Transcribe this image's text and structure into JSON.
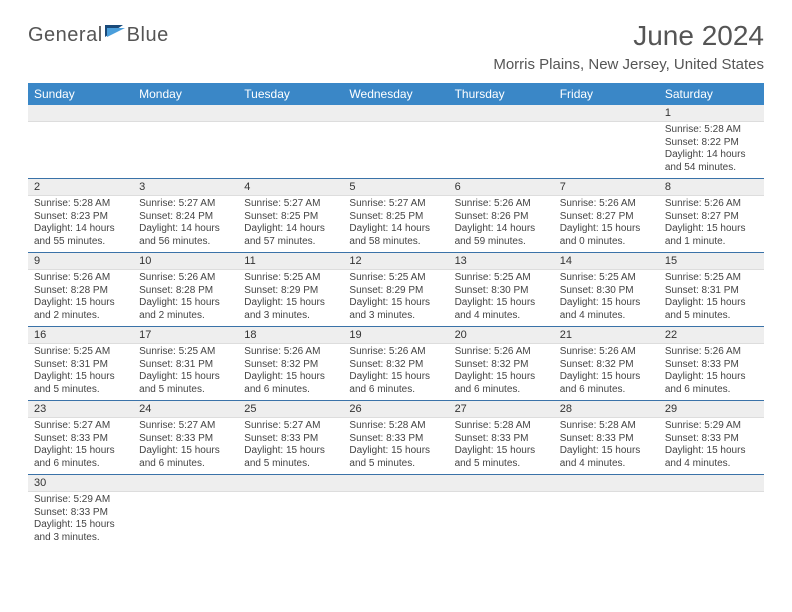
{
  "logo": {
    "text1": "General",
    "text2": "Blue"
  },
  "colors": {
    "accent": "#3a87c7",
    "header_text": "#555555",
    "border": "#3a72a8",
    "daynum_bg": "#eeeeee",
    "flag_dark": "#1a4a7a",
    "flag_light": "#4a9edb"
  },
  "header": {
    "month": "June 2024",
    "location": "Morris Plains, New Jersey, United States"
  },
  "weekdays": [
    "Sunday",
    "Monday",
    "Tuesday",
    "Wednesday",
    "Thursday",
    "Friday",
    "Saturday"
  ],
  "weeks": [
    [
      {
        "blank": true
      },
      {
        "blank": true
      },
      {
        "blank": true
      },
      {
        "blank": true
      },
      {
        "blank": true
      },
      {
        "blank": true
      },
      {
        "day": "1",
        "sunrise": "Sunrise: 5:28 AM",
        "sunset": "Sunset: 8:22 PM",
        "daylight1": "Daylight: 14 hours",
        "daylight2": "and 54 minutes."
      }
    ],
    [
      {
        "day": "2",
        "sunrise": "Sunrise: 5:28 AM",
        "sunset": "Sunset: 8:23 PM",
        "daylight1": "Daylight: 14 hours",
        "daylight2": "and 55 minutes."
      },
      {
        "day": "3",
        "sunrise": "Sunrise: 5:27 AM",
        "sunset": "Sunset: 8:24 PM",
        "daylight1": "Daylight: 14 hours",
        "daylight2": "and 56 minutes."
      },
      {
        "day": "4",
        "sunrise": "Sunrise: 5:27 AM",
        "sunset": "Sunset: 8:25 PM",
        "daylight1": "Daylight: 14 hours",
        "daylight2": "and 57 minutes."
      },
      {
        "day": "5",
        "sunrise": "Sunrise: 5:27 AM",
        "sunset": "Sunset: 8:25 PM",
        "daylight1": "Daylight: 14 hours",
        "daylight2": "and 58 minutes."
      },
      {
        "day": "6",
        "sunrise": "Sunrise: 5:26 AM",
        "sunset": "Sunset: 8:26 PM",
        "daylight1": "Daylight: 14 hours",
        "daylight2": "and 59 minutes."
      },
      {
        "day": "7",
        "sunrise": "Sunrise: 5:26 AM",
        "sunset": "Sunset: 8:27 PM",
        "daylight1": "Daylight: 15 hours",
        "daylight2": "and 0 minutes."
      },
      {
        "day": "8",
        "sunrise": "Sunrise: 5:26 AM",
        "sunset": "Sunset: 8:27 PM",
        "daylight1": "Daylight: 15 hours",
        "daylight2": "and 1 minute."
      }
    ],
    [
      {
        "day": "9",
        "sunrise": "Sunrise: 5:26 AM",
        "sunset": "Sunset: 8:28 PM",
        "daylight1": "Daylight: 15 hours",
        "daylight2": "and 2 minutes."
      },
      {
        "day": "10",
        "sunrise": "Sunrise: 5:26 AM",
        "sunset": "Sunset: 8:28 PM",
        "daylight1": "Daylight: 15 hours",
        "daylight2": "and 2 minutes."
      },
      {
        "day": "11",
        "sunrise": "Sunrise: 5:25 AM",
        "sunset": "Sunset: 8:29 PM",
        "daylight1": "Daylight: 15 hours",
        "daylight2": "and 3 minutes."
      },
      {
        "day": "12",
        "sunrise": "Sunrise: 5:25 AM",
        "sunset": "Sunset: 8:29 PM",
        "daylight1": "Daylight: 15 hours",
        "daylight2": "and 3 minutes."
      },
      {
        "day": "13",
        "sunrise": "Sunrise: 5:25 AM",
        "sunset": "Sunset: 8:30 PM",
        "daylight1": "Daylight: 15 hours",
        "daylight2": "and 4 minutes."
      },
      {
        "day": "14",
        "sunrise": "Sunrise: 5:25 AM",
        "sunset": "Sunset: 8:30 PM",
        "daylight1": "Daylight: 15 hours",
        "daylight2": "and 4 minutes."
      },
      {
        "day": "15",
        "sunrise": "Sunrise: 5:25 AM",
        "sunset": "Sunset: 8:31 PM",
        "daylight1": "Daylight: 15 hours",
        "daylight2": "and 5 minutes."
      }
    ],
    [
      {
        "day": "16",
        "sunrise": "Sunrise: 5:25 AM",
        "sunset": "Sunset: 8:31 PM",
        "daylight1": "Daylight: 15 hours",
        "daylight2": "and 5 minutes."
      },
      {
        "day": "17",
        "sunrise": "Sunrise: 5:25 AM",
        "sunset": "Sunset: 8:31 PM",
        "daylight1": "Daylight: 15 hours",
        "daylight2": "and 5 minutes."
      },
      {
        "day": "18",
        "sunrise": "Sunrise: 5:26 AM",
        "sunset": "Sunset: 8:32 PM",
        "daylight1": "Daylight: 15 hours",
        "daylight2": "and 6 minutes."
      },
      {
        "day": "19",
        "sunrise": "Sunrise: 5:26 AM",
        "sunset": "Sunset: 8:32 PM",
        "daylight1": "Daylight: 15 hours",
        "daylight2": "and 6 minutes."
      },
      {
        "day": "20",
        "sunrise": "Sunrise: 5:26 AM",
        "sunset": "Sunset: 8:32 PM",
        "daylight1": "Daylight: 15 hours",
        "daylight2": "and 6 minutes."
      },
      {
        "day": "21",
        "sunrise": "Sunrise: 5:26 AM",
        "sunset": "Sunset: 8:32 PM",
        "daylight1": "Daylight: 15 hours",
        "daylight2": "and 6 minutes."
      },
      {
        "day": "22",
        "sunrise": "Sunrise: 5:26 AM",
        "sunset": "Sunset: 8:33 PM",
        "daylight1": "Daylight: 15 hours",
        "daylight2": "and 6 minutes."
      }
    ],
    [
      {
        "day": "23",
        "sunrise": "Sunrise: 5:27 AM",
        "sunset": "Sunset: 8:33 PM",
        "daylight1": "Daylight: 15 hours",
        "daylight2": "and 6 minutes."
      },
      {
        "day": "24",
        "sunrise": "Sunrise: 5:27 AM",
        "sunset": "Sunset: 8:33 PM",
        "daylight1": "Daylight: 15 hours",
        "daylight2": "and 6 minutes."
      },
      {
        "day": "25",
        "sunrise": "Sunrise: 5:27 AM",
        "sunset": "Sunset: 8:33 PM",
        "daylight1": "Daylight: 15 hours",
        "daylight2": "and 5 minutes."
      },
      {
        "day": "26",
        "sunrise": "Sunrise: 5:28 AM",
        "sunset": "Sunset: 8:33 PM",
        "daylight1": "Daylight: 15 hours",
        "daylight2": "and 5 minutes."
      },
      {
        "day": "27",
        "sunrise": "Sunrise: 5:28 AM",
        "sunset": "Sunset: 8:33 PM",
        "daylight1": "Daylight: 15 hours",
        "daylight2": "and 5 minutes."
      },
      {
        "day": "28",
        "sunrise": "Sunrise: 5:28 AM",
        "sunset": "Sunset: 8:33 PM",
        "daylight1": "Daylight: 15 hours",
        "daylight2": "and 4 minutes."
      },
      {
        "day": "29",
        "sunrise": "Sunrise: 5:29 AM",
        "sunset": "Sunset: 8:33 PM",
        "daylight1": "Daylight: 15 hours",
        "daylight2": "and 4 minutes."
      }
    ],
    [
      {
        "day": "30",
        "sunrise": "Sunrise: 5:29 AM",
        "sunset": "Sunset: 8:33 PM",
        "daylight1": "Daylight: 15 hours",
        "daylight2": "and 3 minutes."
      },
      {
        "blank": true
      },
      {
        "blank": true
      },
      {
        "blank": true
      },
      {
        "blank": true
      },
      {
        "blank": true
      },
      {
        "blank": true
      }
    ]
  ]
}
